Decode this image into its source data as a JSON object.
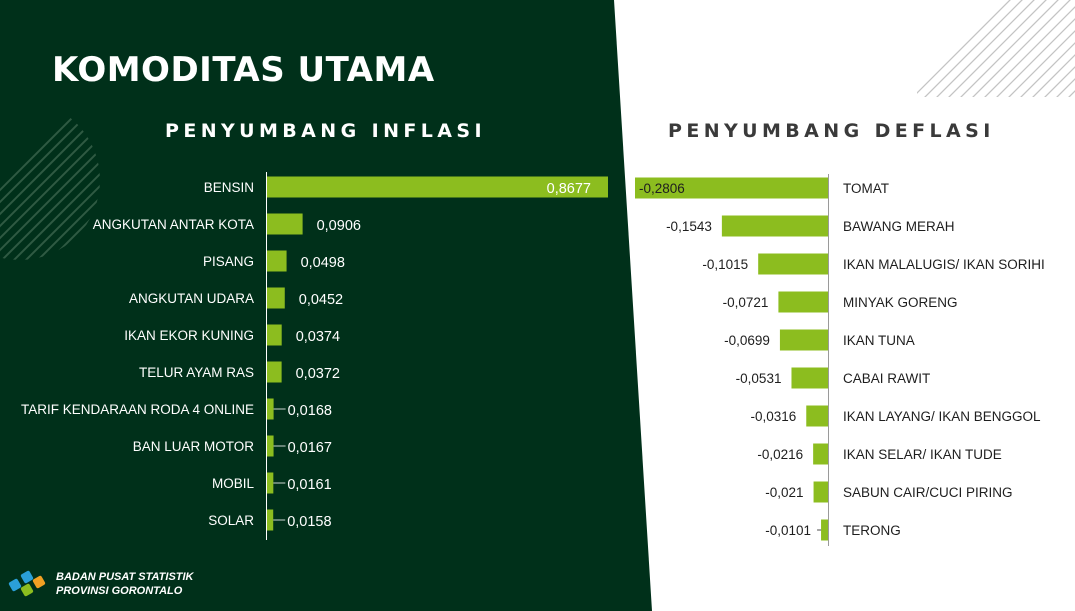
{
  "title": "KOMODITAS UTAMA",
  "colors": {
    "dark_green": "#00301a",
    "bar_green": "#8cbd1f",
    "white": "#ffffff"
  },
  "footer": {
    "line1": "BADAN PUSAT STATISTIK",
    "line2": "PROVINSI GORONTALO",
    "logo_icon": "bps-logo-icon"
  },
  "chart_data": [
    {
      "type": "bar",
      "orientation": "horizontal",
      "title": "PENYUMBANG INFLASI",
      "categories": [
        "BENSIN",
        "ANGKUTAN ANTAR KOTA",
        "PISANG",
        "ANGKUTAN UDARA",
        "IKAN EKOR KUNING",
        "TELUR AYAM RAS",
        "TARIF KENDARAAN RODA 4 ONLINE",
        "BAN LUAR MOTOR",
        "MOBIL",
        "SOLAR"
      ],
      "values": [
        0.8677,
        0.0906,
        0.0498,
        0.0452,
        0.0374,
        0.0372,
        0.0168,
        0.0167,
        0.0161,
        0.0158
      ],
      "data_labels": [
        "0,8677",
        "0,0906",
        "0,0498",
        "0,0452",
        "0,0374",
        "0,0372",
        "0,0168",
        "0,0167",
        "0,0161",
        "0,0158"
      ],
      "xlim": [
        0,
        0.8677
      ]
    },
    {
      "type": "bar",
      "orientation": "horizontal",
      "title": "PENYUMBANG DEFLASI",
      "categories": [
        "TOMAT",
        "BAWANG MERAH",
        "IKAN MALALUGIS/ IKAN SORIHI",
        "MINYAK GORENG",
        "IKAN TUNA",
        "CABAI RAWIT",
        "IKAN LAYANG/ IKAN BENGGOL",
        "IKAN SELAR/ IKAN TUDE",
        "SABUN CAIR/CUCI PIRING",
        "TERONG"
      ],
      "values": [
        -0.2806,
        -0.1543,
        -0.1015,
        -0.0721,
        -0.0699,
        -0.0531,
        -0.0316,
        -0.0216,
        -0.021,
        -0.0101
      ],
      "data_labels": [
        "-0,2806",
        "-0,1543",
        "-0,1015",
        "-0,0721",
        "-0,0699",
        "-0,0531",
        "-0,0316",
        "-0,0216",
        "-0,021",
        "-0,0101"
      ],
      "xlim": [
        -0.2806,
        0
      ]
    }
  ]
}
